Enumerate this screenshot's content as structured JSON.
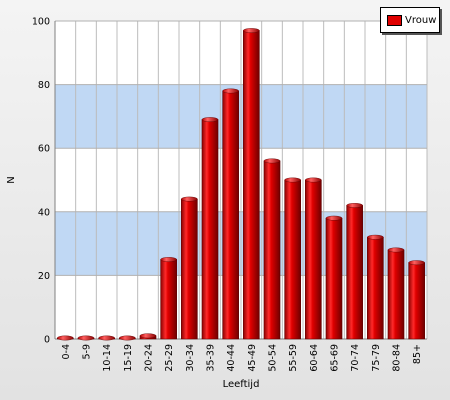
{
  "chart_data": {
    "type": "bar",
    "xlabel": "Leeftijd",
    "ylabel": "N",
    "ylim": [
      0,
      100
    ],
    "yticks": [
      0,
      20,
      40,
      60,
      80,
      100
    ],
    "categories": [
      "0-4",
      "5-9",
      "10-14",
      "15-19",
      "20-24",
      "25-29",
      "30-34",
      "35-39",
      "40-44",
      "45-49",
      "50-54",
      "55-59",
      "60-64",
      "65-69",
      "70-74",
      "75-79",
      "80-84",
      "85+"
    ],
    "series": [
      {
        "name": "Vrouw",
        "color": "#e00000",
        "values": [
          0,
          0,
          0,
          0,
          1,
          25,
          44,
          69,
          78,
          97,
          56,
          50,
          50,
          38,
          42,
          32,
          28,
          24
        ]
      }
    ],
    "grid": true,
    "band_color": "#c0d8f4",
    "legend_position": "top-right"
  }
}
